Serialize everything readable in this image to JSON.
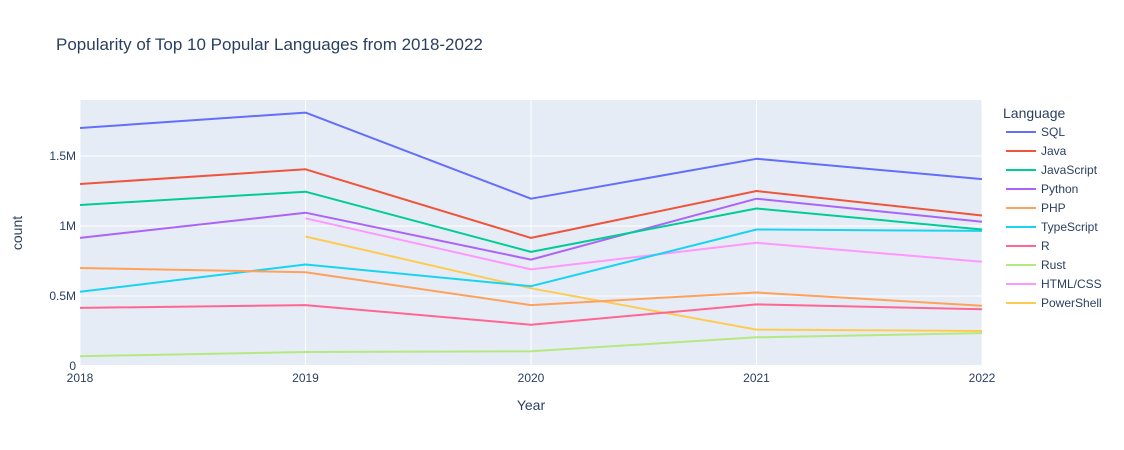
{
  "chart_data": {
    "type": "line",
    "title": "Popularity of Top 10 Popular Languages from 2018-2022",
    "xlabel": "Year",
    "ylabel": "count",
    "x": [
      2018,
      2019,
      2020,
      2021,
      2022
    ],
    "x_tick_labels": [
      "2018",
      "2019",
      "2020",
      "2021",
      "2022"
    ],
    "ylim": [
      0,
      1900000
    ],
    "y_ticks": [
      0,
      500000,
      1000000,
      1500000
    ],
    "y_tick_labels": [
      "0",
      "0.5M",
      "1M",
      "1.5M"
    ],
    "grid": true,
    "legend_title": "Language",
    "legend_position": "right",
    "series": [
      {
        "name": "SQL",
        "color": "#636efa",
        "values": [
          1700000,
          1810000,
          1195000,
          1480000,
          1335000
        ]
      },
      {
        "name": "Java",
        "color": "#ef553b",
        "values": [
          1300000,
          1405000,
          915000,
          1250000,
          1075000
        ]
      },
      {
        "name": "JavaScript",
        "color": "#00cc96",
        "values": [
          1150000,
          1245000,
          815000,
          1125000,
          975000
        ]
      },
      {
        "name": "Python",
        "color": "#ab63fa",
        "values": [
          915000,
          1095000,
          760000,
          1195000,
          1030000
        ]
      },
      {
        "name": "PHP",
        "color": "#ffa15a",
        "values": [
          700000,
          670000,
          435000,
          525000,
          430000
        ]
      },
      {
        "name": "TypeScript",
        "color": "#19d3f3",
        "values": [
          530000,
          725000,
          570000,
          975000,
          965000
        ]
      },
      {
        "name": "R",
        "color": "#ff6692",
        "values": [
          415000,
          435000,
          295000,
          440000,
          405000
        ]
      },
      {
        "name": "Rust",
        "color": "#b6e880",
        "values": [
          70000,
          100000,
          105000,
          205000,
          235000
        ]
      },
      {
        "name": "HTML/CSS",
        "color": "#ff97ff",
        "values": [
          null,
          1055000,
          690000,
          880000,
          745000
        ]
      },
      {
        "name": "PowerShell",
        "color": "#fecb52",
        "values": [
          null,
          925000,
          555000,
          260000,
          250000
        ]
      }
    ]
  }
}
